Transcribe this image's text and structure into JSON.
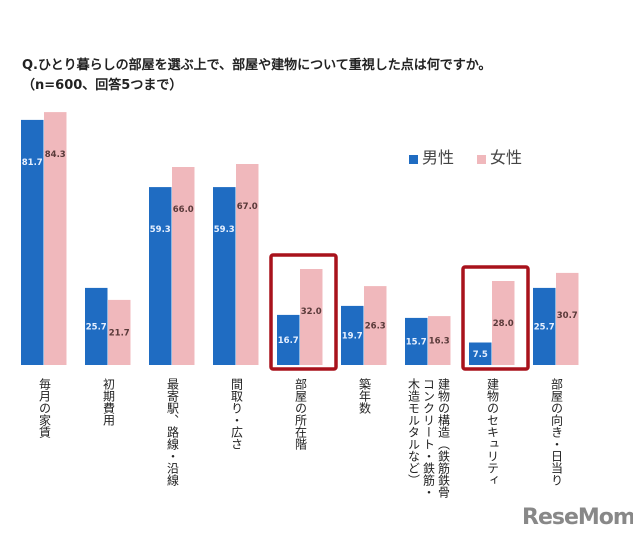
{
  "chart_data": {
    "type": "bar",
    "title": "Q.ひとり暮らしの部屋を選ぶ上で、部屋や建物について重視した点は何ですか。",
    "subtitle": "（n=600、回答5つまで）",
    "categories": [
      "毎月の家賃",
      "初期費用",
      "最寄駅、路線・沿線",
      "間取り・広さ",
      "部屋の所在階",
      "築年数",
      "建物の構造（鉄筋鉄骨\nコンクリート・鉄筋・\n木造モルタルなど）",
      "建物のセキュリティ",
      "部屋の向き・日当り"
    ],
    "series": [
      {
        "name": "男性",
        "color": "#1f6cc2",
        "values": [
          81.7,
          25.7,
          59.3,
          59.3,
          16.7,
          19.7,
          15.7,
          7.5,
          25.7
        ]
      },
      {
        "name": "女性",
        "color": "#f0b8bc",
        "values": [
          84.3,
          21.7,
          66.0,
          67.0,
          32.0,
          26.3,
          16.3,
          28.0,
          30.7
        ]
      }
    ],
    "highlighted_categories": [
      "部屋の所在階",
      "建物のセキュリティ"
    ],
    "highlight_color": "#a8121c",
    "ylim": [
      0,
      90
    ],
    "grid": false,
    "legend": "top-right"
  },
  "watermark": "ReseMom"
}
